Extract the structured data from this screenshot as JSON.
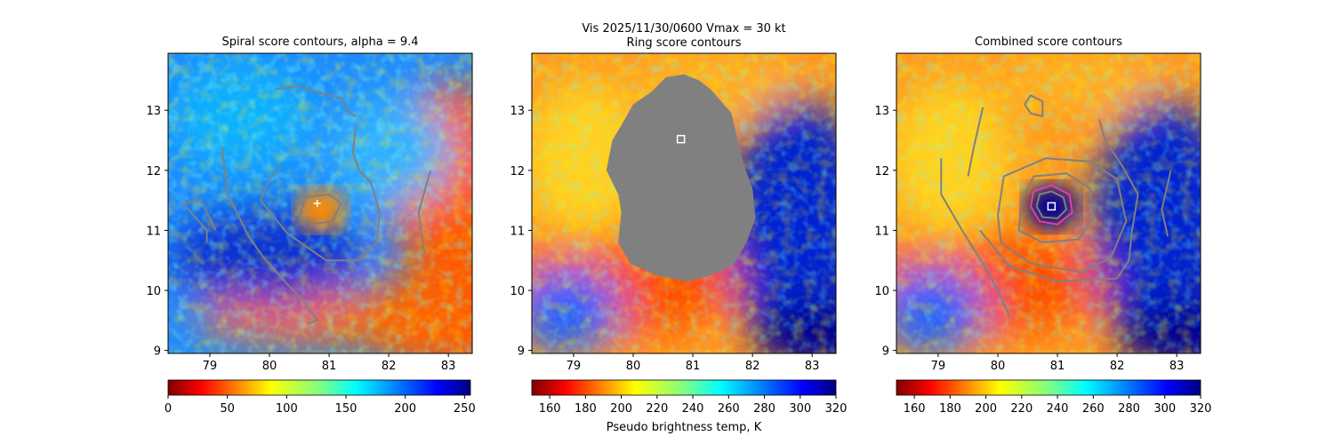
{
  "suptitle": {
    "line1": "Vis  2025/11/30/0600    Vmax = 30 kt",
    "line2": "Ring score contours"
  },
  "colorbar_label": "Pseudo brightness temp, K",
  "chart_data": [
    {
      "type": "heatmap",
      "title": "Spiral score contours, alpha =  9.4",
      "xlim": [
        78.3,
        83.4
      ],
      "ylim": [
        8.95,
        13.95
      ],
      "xticks": [
        "79",
        "80",
        "81",
        "82",
        "83"
      ],
      "yticks": [
        "9",
        "10",
        "11",
        "12",
        "13"
      ],
      "colormap": "jet_r",
      "colorbar": {
        "range": [
          0,
          255
        ],
        "ticks": [
          "0",
          "50",
          "100",
          "150",
          "200",
          "250"
        ]
      },
      "center": {
        "lon": 80.8,
        "lat": 11.45,
        "marker": "plus",
        "color": "#ffffff"
      },
      "contours": [
        {
          "color": "#808080",
          "points": [
            [
              80.1,
              13.35
            ],
            [
              80.45,
              13.4
            ],
            [
              81.2,
              13.2
            ],
            [
              81.35,
              12.95
            ],
            [
              81.45,
              12.9
            ]
          ]
        },
        {
          "color": "#808080",
          "points": [
            [
              79.2,
              12.4
            ],
            [
              79.3,
              11.6
            ],
            [
              79.65,
              10.9
            ],
            [
              79.9,
              10.55
            ],
            [
              80.3,
              10.1
            ],
            [
              80.55,
              9.85
            ],
            [
              80.8,
              9.5
            ],
            [
              80.65,
              9.45
            ]
          ]
        },
        {
          "color": "#808080",
          "points": [
            [
              79.1,
              11.0
            ],
            [
              78.85,
              11.5
            ],
            [
              78.55,
              11.45
            ],
            [
              78.95,
              11.0
            ],
            [
              78.95,
              10.8
            ]
          ]
        },
        {
          "color": "#808080",
          "points": [
            [
              80.2,
              12.05
            ],
            [
              80.0,
              11.85
            ],
            [
              79.85,
              11.5
            ],
            [
              80.3,
              10.95
            ],
            [
              80.95,
              10.5
            ],
            [
              81.5,
              10.5
            ],
            [
              81.8,
              10.8
            ],
            [
              81.85,
              11.3
            ],
            [
              81.7,
              11.8
            ],
            [
              81.5,
              12.0
            ],
            [
              81.4,
              12.3
            ],
            [
              81.45,
              12.75
            ]
          ]
        },
        {
          "color": "#808080",
          "points": [
            [
              82.7,
              12.0
            ],
            [
              82.5,
              11.3
            ],
            [
              82.6,
              10.6
            ]
          ]
        },
        {
          "color": "#808080",
          "points": [
            [
              80.5,
              11.2
            ],
            [
              80.6,
              11.55
            ],
            [
              81.0,
              11.6
            ],
            [
              81.2,
              11.45
            ],
            [
              81.05,
              11.15
            ],
            [
              80.7,
              11.1
            ],
            [
              80.5,
              11.2
            ]
          ]
        }
      ]
    },
    {
      "type": "heatmap",
      "title": "Ring score contours",
      "xlim": [
        78.3,
        83.4
      ],
      "ylim": [
        8.95,
        13.95
      ],
      "xticks": [
        "79",
        "80",
        "81",
        "82",
        "83"
      ],
      "yticks": [
        "9",
        "10",
        "11",
        "12",
        "13"
      ],
      "colormap": "jet_r",
      "colorbar": {
        "range": [
          150,
          320
        ],
        "ticks": [
          "160",
          "180",
          "200",
          "220",
          "240",
          "260",
          "280",
          "300",
          "320"
        ]
      },
      "center": {
        "lon": 80.8,
        "lat": 12.52,
        "marker": "square",
        "color": "#ffffff"
      },
      "masked_region": {
        "color": "#808080",
        "points": [
          [
            80.3,
            13.3
          ],
          [
            80.55,
            13.55
          ],
          [
            80.85,
            13.6
          ],
          [
            81.1,
            13.5
          ],
          [
            81.3,
            13.35
          ],
          [
            81.65,
            12.95
          ],
          [
            81.75,
            12.5
          ],
          [
            81.85,
            12.1
          ],
          [
            82.0,
            11.7
          ],
          [
            82.05,
            11.2
          ],
          [
            81.9,
            10.8
          ],
          [
            81.7,
            10.45
          ],
          [
            81.3,
            10.25
          ],
          [
            80.9,
            10.15
          ],
          [
            80.4,
            10.25
          ],
          [
            79.95,
            10.45
          ],
          [
            79.75,
            10.8
          ],
          [
            79.8,
            11.3
          ],
          [
            79.75,
            11.6
          ],
          [
            79.55,
            12.0
          ],
          [
            79.65,
            12.5
          ],
          [
            79.8,
            12.75
          ],
          [
            80.0,
            13.1
          ],
          [
            80.3,
            13.3
          ]
        ]
      },
      "contours": []
    },
    {
      "type": "heatmap",
      "title": "Combined score contours",
      "xlim": [
        78.3,
        83.4
      ],
      "ylim": [
        8.95,
        13.95
      ],
      "xticks": [
        "79",
        "80",
        "81",
        "82",
        "83"
      ],
      "yticks": [
        "9",
        "10",
        "11",
        "12",
        "13"
      ],
      "colormap": "jet_r",
      "colorbar": {
        "range": [
          150,
          320
        ],
        "ticks": [
          "160",
          "180",
          "200",
          "220",
          "240",
          "260",
          "280",
          "300",
          "320"
        ]
      },
      "center": {
        "lon": 80.9,
        "lat": 11.4,
        "marker": "square",
        "color": "#ffffff"
      },
      "contours": [
        {
          "color": "#808080",
          "points": [
            [
              79.75,
              13.05
            ],
            [
              79.6,
              12.4
            ],
            [
              79.5,
              11.9
            ]
          ]
        },
        {
          "color": "#808080",
          "points": [
            [
              79.05,
              12.2
            ],
            [
              79.05,
              11.6
            ],
            [
              79.4,
              11.0
            ],
            [
              79.75,
              10.45
            ],
            [
              80.0,
              10.0
            ],
            [
              80.2,
              9.55
            ]
          ]
        },
        {
          "color": "#808080",
          "points": [
            [
              80.4,
              11.5
            ],
            [
              80.35,
              11.0
            ],
            [
              80.75,
              10.8
            ],
            [
              81.35,
              10.85
            ],
            [
              81.6,
              11.2
            ],
            [
              81.55,
              11.7
            ],
            [
              81.15,
              11.95
            ],
            [
              80.6,
              11.9
            ],
            [
              80.4,
              11.5
            ]
          ]
        },
        {
          "color": "#808080",
          "points": [
            [
              80.0,
              11.25
            ],
            [
              80.05,
              10.8
            ],
            [
              80.55,
              10.45
            ],
            [
              81.4,
              10.3
            ],
            [
              81.9,
              10.55
            ],
            [
              82.15,
              11.15
            ],
            [
              82.0,
              11.85
            ],
            [
              81.55,
              12.15
            ],
            [
              80.8,
              12.2
            ],
            [
              80.1,
              11.9
            ],
            [
              80.0,
              11.25
            ]
          ]
        },
        {
          "color": "#808080",
          "points": [
            [
              79.7,
              11.0
            ],
            [
              80.2,
              10.4
            ],
            [
              81.0,
              10.15
            ],
            [
              82.0,
              10.2
            ],
            [
              82.2,
              10.5
            ],
            [
              82.25,
              11.0
            ],
            [
              82.35,
              11.6
            ],
            [
              82.1,
              12.05
            ],
            [
              81.8,
              12.5
            ],
            [
              81.7,
              12.85
            ]
          ]
        },
        {
          "color": "#808080",
          "points": [
            [
              80.45,
              13.1
            ],
            [
              80.55,
              12.95
            ],
            [
              80.75,
              12.9
            ],
            [
              80.75,
              13.15
            ],
            [
              80.55,
              13.25
            ],
            [
              80.45,
              13.1
            ]
          ]
        },
        {
          "color": "#808080",
          "points": [
            [
              82.9,
              12.0
            ],
            [
              82.75,
              11.35
            ],
            [
              82.85,
              10.9
            ]
          ]
        },
        {
          "color": "#e040a0",
          "points": [
            [
              80.55,
              11.4
            ],
            [
              80.6,
              11.65
            ],
            [
              80.9,
              11.75
            ],
            [
              81.2,
              11.6
            ],
            [
              81.25,
              11.3
            ],
            [
              81.0,
              11.1
            ],
            [
              80.7,
              11.15
            ],
            [
              80.55,
              11.4
            ]
          ]
        },
        {
          "color": "#808080",
          "points": [
            [
              80.65,
              11.4
            ],
            [
              80.7,
              11.6
            ],
            [
              80.9,
              11.65
            ],
            [
              81.1,
              11.55
            ],
            [
              81.15,
              11.35
            ],
            [
              81.0,
              11.2
            ],
            [
              80.75,
              11.22
            ],
            [
              80.65,
              11.4
            ]
          ]
        }
      ]
    }
  ]
}
